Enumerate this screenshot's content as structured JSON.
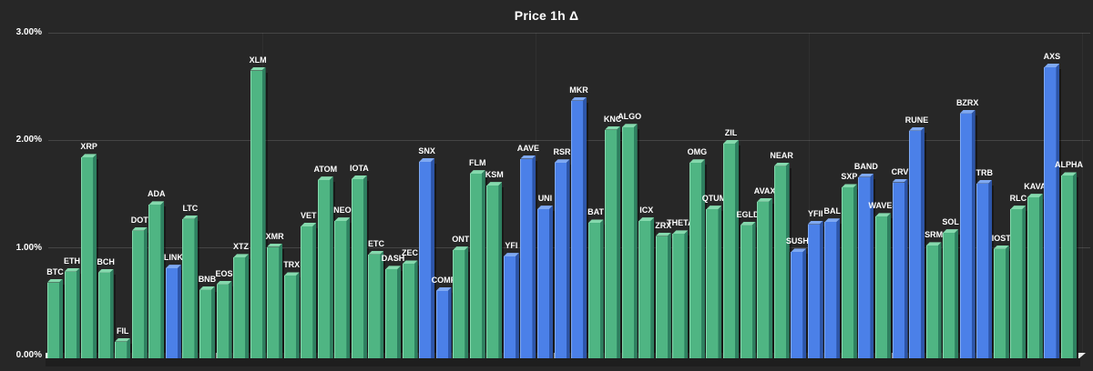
{
  "colors": {
    "background": "#272727",
    "grid": "#454545",
    "text": "#ffffff",
    "floor": "#ececec",
    "green_face": "#4fb583",
    "green_top": "#85d9ad",
    "green_side": "#2e8060",
    "blue_face": "#4b80e8",
    "blue_top": "#7fa9f2",
    "blue_side": "#2d55a8"
  },
  "chart_data": {
    "type": "bar",
    "title": "Price 1h Δ",
    "xlabel": "",
    "ylabel": "",
    "unit": "%",
    "ylim": [
      0,
      3.0
    ],
    "grid": true,
    "legend": "none",
    "style": "3d-bars-dark",
    "yticks": [
      {
        "label": "3.00%",
        "value": 3
      },
      {
        "label": "2.00%",
        "value": 2
      },
      {
        "label": "1.00%",
        "value": 1
      },
      {
        "label": "0.00%",
        "value": 0
      }
    ],
    "categories": [
      "BTC",
      "ETH",
      "XRP",
      "BCH",
      "FIL",
      "DOT",
      "ADA",
      "LINK",
      "LTC",
      "BNB",
      "EOS",
      "XTZ",
      "XLM",
      "XMR",
      "TRX",
      "VET",
      "ATOM",
      "NEO",
      "IOTA",
      "ETC",
      "DASH",
      "ZEC",
      "SNX",
      "COMP",
      "ONT",
      "FLM",
      "KSM",
      "YFI",
      "AAVE",
      "UNI",
      "RSR",
      "MKR",
      "BAT",
      "KNC",
      "ALGO",
      "ICX",
      "ZRX",
      "THETA",
      "OMG",
      "QTUM",
      "ZIL",
      "EGLD",
      "AVAX",
      "NEAR",
      "SUSHI",
      "YFII",
      "BAL",
      "SXP",
      "BAND",
      "WAVES",
      "CRV",
      "RUNE",
      "SRM",
      "SOL",
      "BZRX",
      "TRB",
      "IOST",
      "RLC",
      "KAVA",
      "AXS",
      "ALPHA"
    ],
    "values": [
      0.68,
      0.78,
      1.84,
      0.77,
      0.13,
      1.16,
      1.4,
      0.81,
      1.27,
      0.61,
      0.66,
      0.91,
      2.65,
      1.01,
      0.74,
      1.2,
      1.63,
      1.25,
      1.64,
      0.94,
      0.8,
      0.85,
      1.8,
      0.6,
      0.98,
      1.69,
      1.58,
      0.92,
      1.83,
      1.36,
      1.79,
      2.37,
      1.23,
      2.1,
      2.12,
      1.25,
      1.11,
      1.13,
      1.79,
      1.36,
      1.97,
      1.21,
      1.43,
      1.76,
      0.96,
      1.22,
      1.24,
      1.56,
      1.66,
      1.29,
      1.61,
      2.09,
      1.02,
      1.14,
      2.25,
      1.6,
      0.99,
      1.36,
      1.47,
      2.68,
      1.67
    ],
    "bar_colors": [
      "green",
      "green",
      "green",
      "green",
      "green",
      "green",
      "green",
      "blue",
      "green",
      "green",
      "green",
      "green",
      "green",
      "green",
      "green",
      "green",
      "green",
      "green",
      "green",
      "green",
      "green",
      "green",
      "blue",
      "blue",
      "green",
      "green",
      "green",
      "blue",
      "blue",
      "blue",
      "blue",
      "blue",
      "green",
      "green",
      "green",
      "green",
      "green",
      "green",
      "green",
      "green",
      "green",
      "green",
      "green",
      "green",
      "blue",
      "blue",
      "blue",
      "green",
      "blue",
      "green",
      "blue",
      "blue",
      "green",
      "green",
      "blue",
      "blue",
      "green",
      "green",
      "green",
      "blue",
      "green"
    ]
  }
}
